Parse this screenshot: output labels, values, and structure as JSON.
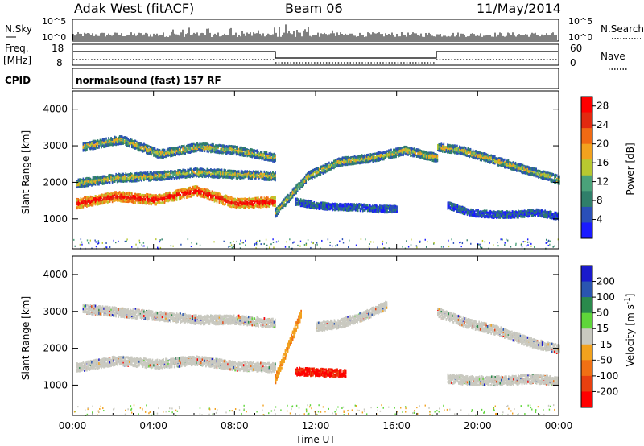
{
  "header": {
    "title": "Adak West (fitACF)",
    "beam": "Beam 06",
    "date": "11/May/2014"
  },
  "panels": {
    "nsky_label": "N.Sky",
    "nsearch_label": "N.Search",
    "freq_label": "Freq.",
    "freq_unit": "[MHz]",
    "nave_label": "Nave",
    "cpid_label": "CPID",
    "cpid_value": "normalsound (fast) 157 RF",
    "nsky_ticks": [
      "10^5",
      "10^0"
    ],
    "nsearch_ticks": [
      "10^5",
      "10^0"
    ],
    "freq_ticks": [
      "18",
      "8"
    ],
    "nave_ticks": [
      "60",
      "0"
    ]
  },
  "colors": {
    "power_scale": [
      "#1a1aff",
      "#2a4fb8",
      "#2f7f6a",
      "#4aa27a",
      "#b8c830",
      "#f2a21e",
      "#f06a14",
      "#e22a10",
      "#ff0000"
    ],
    "velocity_scale": [
      "#1a1acc",
      "#2a55b0",
      "#2a8a4c",
      "#5fd63a",
      "#c9c9c0",
      "#f2a21e",
      "#f07014",
      "#e84010",
      "#ff0000"
    ]
  },
  "chart_data": [
    {
      "type": "heatmap",
      "title": "Power",
      "xlabel": "",
      "ylabel": "Slant Range [km]",
      "xlim": [
        "00:00",
        "24:00"
      ],
      "ylim": [
        180,
        4500
      ],
      "y_ticks": [
        1000,
        2000,
        3000,
        4000
      ],
      "colorbar": {
        "label": "Power [dB]",
        "ticks": [
          4,
          8,
          12,
          16,
          20,
          24,
          28
        ],
        "range": [
          0,
          30
        ]
      },
      "echo_bands": [
        {
          "t_start": 0.2,
          "t_end": 10.0,
          "range_km": [
            1450,
            1650,
            1550,
            1800,
            1450,
            1500
          ],
          "intensity": "high"
        },
        {
          "t_start": 0.5,
          "t_end": 10.0,
          "range_km": [
            3000,
            3200,
            2800,
            3000,
            2900,
            2700
          ],
          "intensity": "medium"
        },
        {
          "t_start": 0.2,
          "t_end": 10.0,
          "range_km": [
            2000,
            2150,
            2200,
            2300,
            2250,
            2200
          ],
          "intensity": "medium"
        },
        {
          "t_start": 10.0,
          "t_end": 18.0,
          "range_km": [
            1200,
            2200,
            2600,
            2700,
            2900,
            2700
          ],
          "intensity": "medium"
        },
        {
          "t_start": 11.0,
          "t_end": 16.0,
          "range_km": [
            1500,
            1400,
            1350,
            1350,
            1300,
            1300
          ],
          "intensity": "low"
        },
        {
          "t_start": 18.0,
          "t_end": 24.0,
          "range_km": [
            3000,
            2900,
            2700,
            2500,
            2300,
            2100
          ],
          "intensity": "medium"
        },
        {
          "t_start": 18.5,
          "t_end": 24.0,
          "range_km": [
            1400,
            1200,
            1150,
            1150,
            1200,
            1100
          ],
          "intensity": "low"
        }
      ]
    },
    {
      "type": "heatmap",
      "title": "Velocity",
      "xlabel": "Time UT",
      "ylabel": "Slant Range [km]",
      "xlim": [
        "00:00",
        "24:00"
      ],
      "ylim": [
        180,
        4500
      ],
      "y_ticks": [
        1000,
        2000,
        3000,
        4000
      ],
      "x_ticks": [
        "00:00",
        "04:00",
        "08:00",
        "12:00",
        "16:00",
        "20:00",
        "00:00"
      ],
      "colorbar": {
        "label": "Velocity [m s^-1]",
        "ticks": [
          200,
          100,
          50,
          15,
          -15,
          -50,
          -100,
          -200
        ],
        "range": [
          -250,
          250
        ]
      },
      "echo_bands": [
        {
          "t_start": 0.2,
          "t_end": 10.0,
          "range_km": [
            1500,
            1700,
            1600,
            1700,
            1550,
            1500
          ],
          "velocity": "ground"
        },
        {
          "t_start": 0.5,
          "t_end": 10.0,
          "range_km": [
            3100,
            3000,
            2900,
            2800,
            2800,
            2700
          ],
          "velocity": "ground"
        },
        {
          "t_start": 10.0,
          "t_end": 11.3,
          "range_km": [
            1200,
            3000
          ],
          "velocity": -60
        },
        {
          "t_start": 11.0,
          "t_end": 13.5,
          "range_km": [
            1400,
            1350
          ],
          "velocity": -180
        },
        {
          "t_start": 12.0,
          "t_end": 15.5,
          "range_km": [
            2600,
            2700,
            2900,
            3200
          ],
          "velocity": "ground"
        },
        {
          "t_start": 18.0,
          "t_end": 24.0,
          "range_km": [
            3000,
            2700,
            2500,
            2200,
            2000
          ],
          "velocity": "ground"
        },
        {
          "t_start": 18.5,
          "t_end": 24.0,
          "range_km": [
            1200,
            1150,
            1150,
            1200,
            1150
          ],
          "velocity": "ground"
        }
      ]
    }
  ],
  "footer": {
    "xlabel": "Time UT"
  }
}
